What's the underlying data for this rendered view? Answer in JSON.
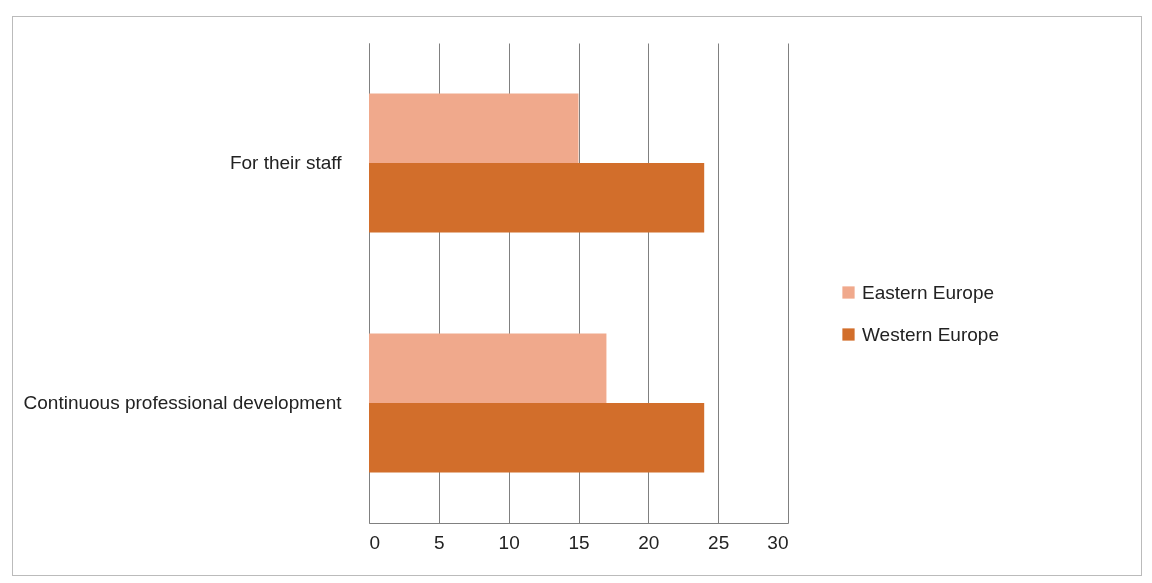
{
  "chart_data": {
    "type": "bar",
    "orientation": "horizontal",
    "categories": [
      "For their staff",
      "Continuous professional development"
    ],
    "series": [
      {
        "name": "Eastern Europe",
        "color": "#f0a98c",
        "values": [
          15,
          17
        ]
      },
      {
        "name": "Western Europe",
        "color": "#d26e2b",
        "values": [
          24,
          24
        ]
      }
    ],
    "xlim": [
      0,
      30
    ],
    "xticks": [
      0,
      5,
      10,
      15,
      20,
      25,
      30
    ],
    "grid": "x",
    "legend": "right"
  }
}
